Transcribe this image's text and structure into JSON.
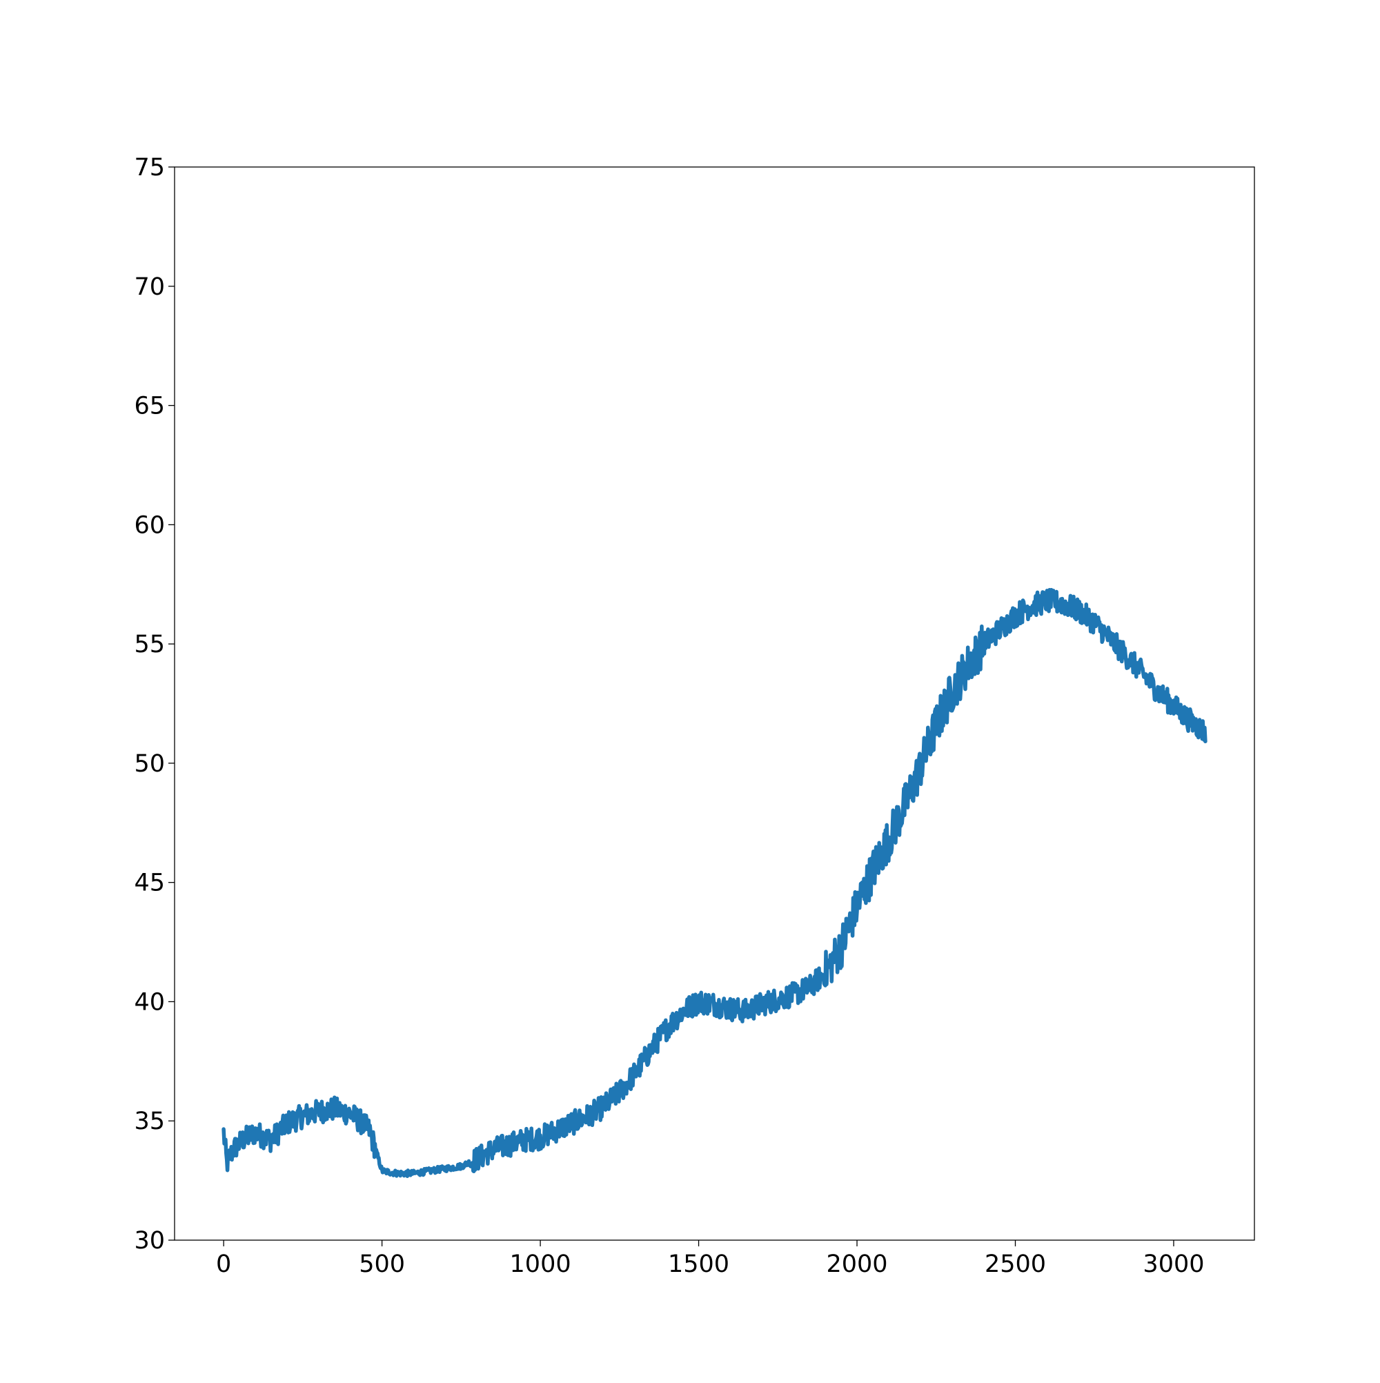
{
  "chart_data": {
    "type": "line",
    "title": "",
    "xlabel": "",
    "ylabel": "",
    "xlim": [
      -155,
      3255
    ],
    "ylim": [
      30,
      75
    ],
    "x_ticks": [
      0,
      500,
      1000,
      1500,
      2000,
      2500,
      3000
    ],
    "y_ticks": [
      30,
      35,
      40,
      45,
      50,
      55,
      60,
      65,
      70,
      75
    ],
    "x_tick_labels": [
      "0",
      "500",
      "1000",
      "1500",
      "2000",
      "2500",
      "3000"
    ],
    "y_tick_labels": [
      "30",
      "35",
      "40",
      "45",
      "50",
      "55",
      "60",
      "65",
      "70",
      "75"
    ],
    "grid": false,
    "legend": "none",
    "line_color": "#1f77b4",
    "series": [
      {
        "name": "",
        "x": [
          0,
          10,
          30,
          60,
          100,
          150,
          200,
          250,
          300,
          350,
          400,
          430,
          460,
          480,
          500,
          550,
          600,
          650,
          700,
          750,
          800,
          850,
          900,
          950,
          1000,
          1050,
          1100,
          1150,
          1200,
          1250,
          1300,
          1350,
          1400,
          1450,
          1500,
          1550,
          1600,
          1650,
          1700,
          1750,
          1800,
          1850,
          1900,
          1950,
          2000,
          2050,
          2100,
          2150,
          2200,
          2250,
          2300,
          2350,
          2400,
          2450,
          2500,
          2550,
          2600,
          2650,
          2700,
          2750,
          2800,
          2850,
          2900,
          2950,
          3000,
          3050,
          3100
        ],
        "y": [
          34.5,
          33.2,
          33.8,
          34.2,
          34.5,
          34.2,
          34.9,
          35.2,
          35.4,
          35.5,
          35.3,
          35.0,
          34.6,
          33.8,
          32.9,
          32.8,
          32.8,
          32.9,
          33.0,
          33.1,
          33.4,
          33.8,
          34.0,
          34.2,
          34.3,
          34.6,
          34.9,
          35.2,
          35.6,
          36.2,
          37.0,
          38.0,
          38.9,
          39.6,
          40.0,
          39.9,
          39.7,
          39.6,
          39.9,
          40.1,
          40.3,
          40.6,
          41.2,
          42.3,
          44.0,
          45.5,
          46.8,
          48.2,
          49.8,
          51.6,
          53.0,
          54.1,
          55.0,
          55.6,
          56.2,
          56.6,
          56.8,
          56.7,
          56.4,
          55.9,
          55.2,
          54.5,
          53.8,
          53.0,
          52.4,
          51.8,
          51.3
        ],
        "noise_amplitude": 0.5
      }
    ]
  }
}
